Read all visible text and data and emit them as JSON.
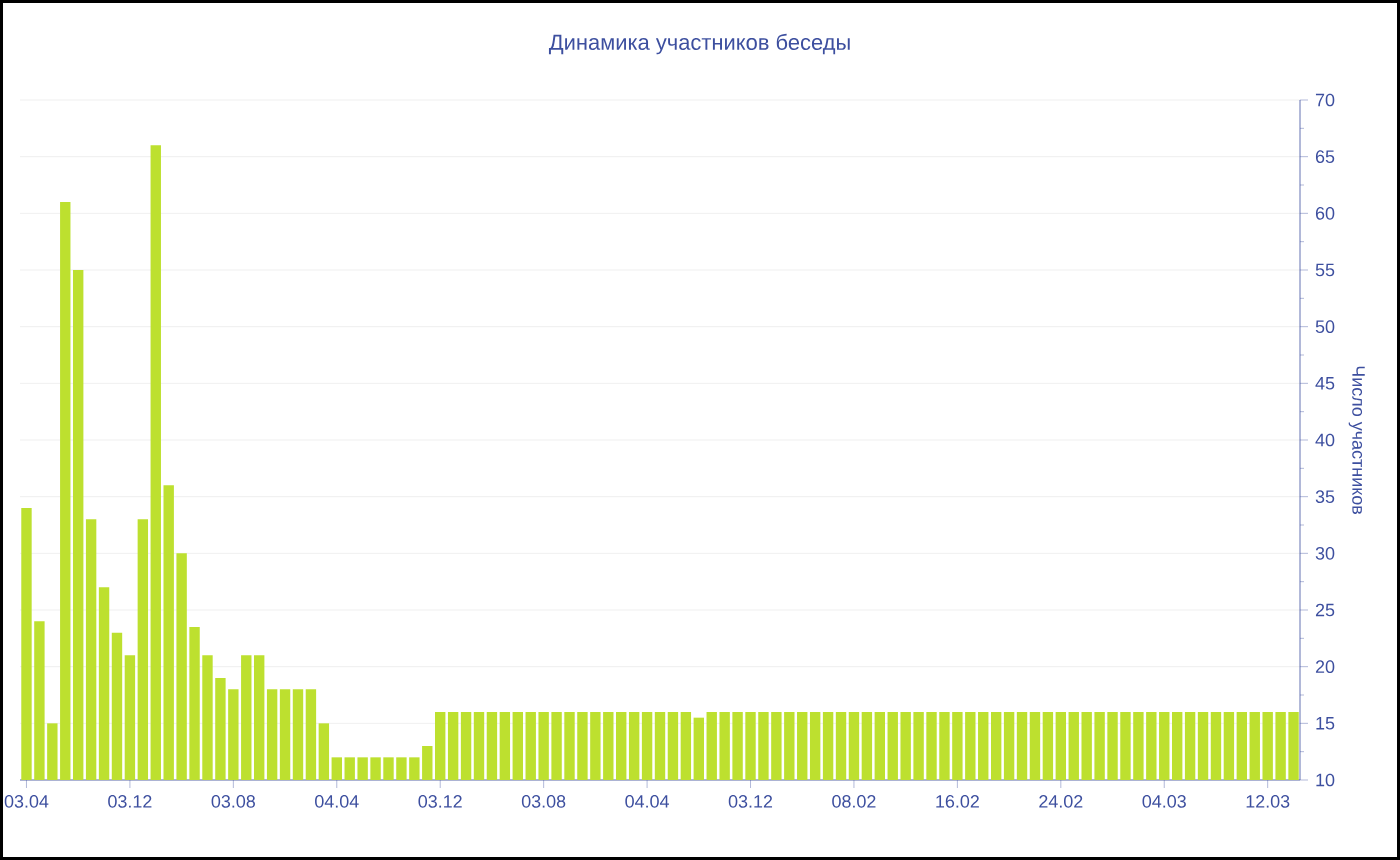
{
  "chart_data": {
    "type": "bar",
    "title": "Динамика участников беседы",
    "ylabel": "Число участников",
    "categories": [
      "03.04",
      null,
      null,
      null,
      null,
      null,
      null,
      null,
      "03.12",
      null,
      null,
      null,
      null,
      null,
      null,
      null,
      "03.08",
      null,
      null,
      null,
      null,
      null,
      null,
      null,
      "04.04",
      null,
      null,
      null,
      null,
      null,
      null,
      null,
      "03.12",
      null,
      null,
      null,
      null,
      null,
      null,
      null,
      "03.08",
      null,
      null,
      null,
      null,
      null,
      null,
      null,
      "04.04",
      null,
      null,
      null,
      null,
      null,
      null,
      null,
      "03.12",
      null,
      null,
      null,
      null,
      null,
      null,
      null,
      "08.02",
      null,
      null,
      null,
      null,
      null,
      null,
      null,
      "16.02",
      null,
      null,
      null,
      null,
      null,
      null,
      null,
      "24.02",
      null,
      null,
      null,
      null,
      null,
      null,
      null,
      "04.03",
      null,
      null,
      null,
      null,
      null,
      null,
      null,
      "12.03",
      null,
      null
    ],
    "values": [
      34,
      24,
      15,
      61,
      55,
      33,
      27,
      23,
      21,
      33,
      66,
      36,
      30,
      23.5,
      21,
      19,
      18,
      21,
      21,
      18,
      18,
      18,
      18,
      15,
      12,
      12,
      12,
      12,
      12,
      12,
      12,
      13,
      16,
      16,
      16,
      16,
      16,
      16,
      16,
      16,
      16,
      16,
      16,
      16,
      16,
      16,
      16,
      16,
      16,
      16,
      16,
      16,
      15.5,
      16,
      16,
      16,
      16,
      16,
      16,
      16,
      16,
      16,
      16,
      16,
      16,
      16,
      16,
      16,
      16,
      16,
      16,
      16,
      16,
      16,
      16,
      16,
      16,
      16,
      16,
      16,
      16,
      16,
      16,
      16,
      16,
      16,
      16,
      16,
      16,
      16,
      16,
      16,
      16,
      16,
      16,
      16,
      16,
      16,
      16
    ],
    "color": "#bde02f",
    "ylim": [
      10,
      70
    ],
    "yticks": [
      10,
      15,
      20,
      25,
      30,
      35,
      40,
      45,
      50,
      55,
      60,
      65,
      70
    ],
    "grid": "y"
  }
}
